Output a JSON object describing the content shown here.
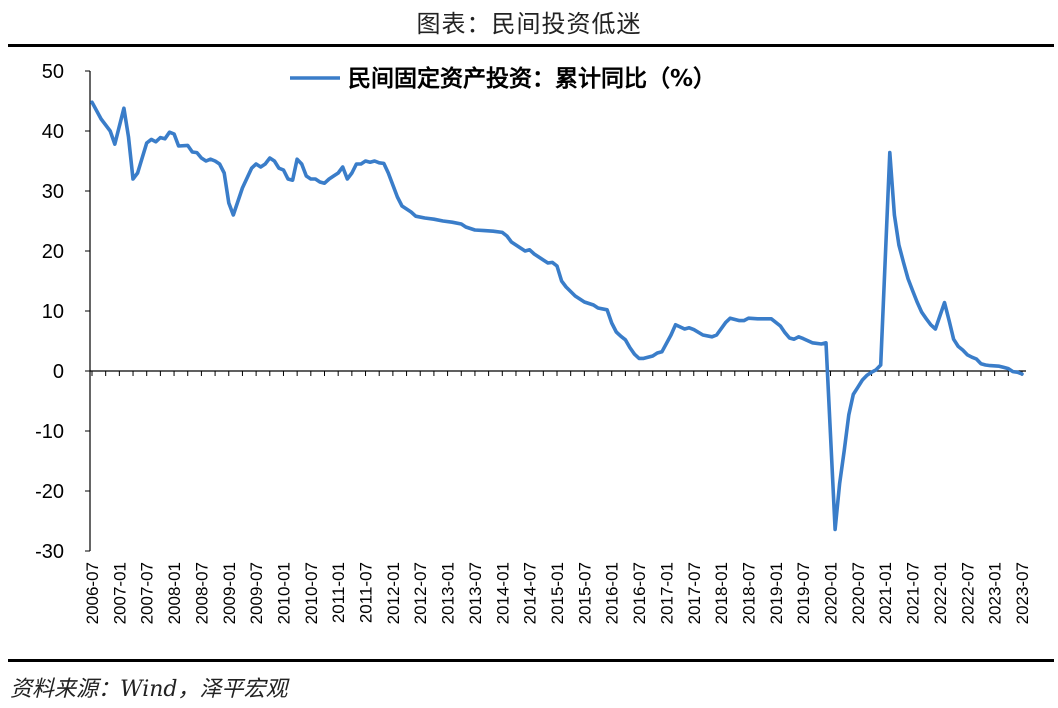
{
  "page": {
    "title": "图表：民间投资低迷",
    "source": "资料来源：Wind，泽平宏观"
  },
  "colors": {
    "series": "#3A7DC9",
    "axis": "#000000"
  },
  "chart_data": {
    "type": "line",
    "legend_position": "top-center",
    "grid": false,
    "ylim": [
      -30,
      50
    ],
    "yticks": [
      50,
      40,
      30,
      20,
      10,
      0,
      -10,
      -20,
      -30
    ],
    "xticks": [
      "2006-07",
      "2007-01",
      "2007-07",
      "2008-01",
      "2008-07",
      "2009-01",
      "2009-07",
      "2010-01",
      "2010-07",
      "2011-01",
      "2011-07",
      "2012-01",
      "2012-07",
      "2013-01",
      "2013-07",
      "2014-01",
      "2014-07",
      "2015-01",
      "2015-07",
      "2016-01",
      "2016-07",
      "2017-01",
      "2017-07",
      "2018-01",
      "2018-07",
      "2019-01",
      "2019-07",
      "2020-01",
      "2020-07",
      "2021-01",
      "2021-07",
      "2022-01",
      "2022-07",
      "2023-01",
      "2023-07"
    ],
    "series": [
      {
        "name": "民间固定资产投资：累计同比（%）",
        "points": [
          [
            "2006-07",
            44.8
          ],
          [
            "2006-09",
            42.0
          ],
          [
            "2006-11",
            40.0
          ],
          [
            "2006-12",
            37.8
          ],
          [
            "2007-02",
            43.8
          ],
          [
            "2007-03",
            39.0
          ],
          [
            "2007-04",
            32.0
          ],
          [
            "2007-05",
            33.0
          ],
          [
            "2007-07",
            38.0
          ],
          [
            "2007-08",
            38.6
          ],
          [
            "2007-09",
            38.2
          ],
          [
            "2007-10",
            38.9
          ],
          [
            "2007-11",
            38.7
          ],
          [
            "2007-12",
            39.8
          ],
          [
            "2008-01",
            39.5
          ],
          [
            "2008-02",
            37.5
          ],
          [
            "2008-04",
            37.6
          ],
          [
            "2008-05",
            36.5
          ],
          [
            "2008-06",
            36.4
          ],
          [
            "2008-07",
            35.5
          ],
          [
            "2008-08",
            35.0
          ],
          [
            "2008-09",
            35.3
          ],
          [
            "2008-10",
            35.0
          ],
          [
            "2008-11",
            34.5
          ],
          [
            "2008-12",
            33.0
          ],
          [
            "2009-01",
            28.0
          ],
          [
            "2009-02",
            26.0
          ],
          [
            "2009-04",
            30.5
          ],
          [
            "2009-06",
            33.8
          ],
          [
            "2009-07",
            34.5
          ],
          [
            "2009-08",
            34.0
          ],
          [
            "2009-09",
            34.5
          ],
          [
            "2009-10",
            35.5
          ],
          [
            "2009-11",
            35.0
          ],
          [
            "2009-12",
            33.8
          ],
          [
            "2010-01",
            33.5
          ],
          [
            "2010-02",
            32.0
          ],
          [
            "2010-03",
            31.8
          ],
          [
            "2010-04",
            35.3
          ],
          [
            "2010-05",
            34.5
          ],
          [
            "2010-06",
            32.5
          ],
          [
            "2010-07",
            32.0
          ],
          [
            "2010-08",
            32.0
          ],
          [
            "2010-09",
            31.5
          ],
          [
            "2010-10",
            31.3
          ],
          [
            "2010-11",
            32.0
          ],
          [
            "2010-12",
            32.5
          ],
          [
            "2011-01",
            33.0
          ],
          [
            "2011-02",
            34.0
          ],
          [
            "2011-03",
            32.0
          ],
          [
            "2011-04",
            33.0
          ],
          [
            "2011-05",
            34.5
          ],
          [
            "2011-06",
            34.5
          ],
          [
            "2011-07",
            35.0
          ],
          [
            "2011-08",
            34.8
          ],
          [
            "2011-09",
            35.0
          ],
          [
            "2011-10",
            34.7
          ],
          [
            "2011-11",
            34.6
          ],
          [
            "2011-12",
            33.0
          ],
          [
            "2012-02",
            29.0
          ],
          [
            "2012-03",
            27.5
          ],
          [
            "2012-05",
            26.5
          ],
          [
            "2012-06",
            25.8
          ],
          [
            "2012-08",
            25.5
          ],
          [
            "2012-10",
            25.3
          ],
          [
            "2012-12",
            25.0
          ],
          [
            "2013-02",
            24.8
          ],
          [
            "2013-04",
            24.5
          ],
          [
            "2013-05",
            24.0
          ],
          [
            "2013-07",
            23.5
          ],
          [
            "2013-09",
            23.4
          ],
          [
            "2013-11",
            23.3
          ],
          [
            "2014-01",
            23.1
          ],
          [
            "2014-02",
            22.5
          ],
          [
            "2014-03",
            21.5
          ],
          [
            "2014-05",
            20.5
          ],
          [
            "2014-06",
            20.0
          ],
          [
            "2014-07",
            20.2
          ],
          [
            "2014-08",
            19.5
          ],
          [
            "2014-10",
            18.5
          ],
          [
            "2014-11",
            18.0
          ],
          [
            "2014-12",
            18.1
          ],
          [
            "2015-01",
            17.5
          ],
          [
            "2015-02",
            15.0
          ],
          [
            "2015-03",
            14.0
          ],
          [
            "2015-05",
            12.5
          ],
          [
            "2015-07",
            11.5
          ],
          [
            "2015-09",
            11.0
          ],
          [
            "2015-10",
            10.5
          ],
          [
            "2015-12",
            10.2
          ],
          [
            "2016-01",
            8.0
          ],
          [
            "2016-02",
            6.5
          ],
          [
            "2016-03",
            5.8
          ],
          [
            "2016-04",
            5.2
          ],
          [
            "2016-05",
            3.9
          ],
          [
            "2016-06",
            2.8
          ],
          [
            "2016-07",
            2.1
          ],
          [
            "2016-08",
            2.1
          ],
          [
            "2016-10",
            2.5
          ],
          [
            "2016-11",
            3.0
          ],
          [
            "2016-12",
            3.2
          ],
          [
            "2017-02",
            6.0
          ],
          [
            "2017-03",
            7.7
          ],
          [
            "2017-05",
            7.0
          ],
          [
            "2017-06",
            7.2
          ],
          [
            "2017-07",
            6.9
          ],
          [
            "2017-09",
            6.0
          ],
          [
            "2017-11",
            5.7
          ],
          [
            "2017-12",
            6.0
          ],
          [
            "2018-02",
            8.1
          ],
          [
            "2018-03",
            8.8
          ],
          [
            "2018-05",
            8.4
          ],
          [
            "2018-06",
            8.4
          ],
          [
            "2018-07",
            8.8
          ],
          [
            "2018-09",
            8.7
          ],
          [
            "2018-11",
            8.7
          ],
          [
            "2018-12",
            8.7
          ],
          [
            "2019-02",
            7.5
          ],
          [
            "2019-03",
            6.4
          ],
          [
            "2019-04",
            5.5
          ],
          [
            "2019-05",
            5.3
          ],
          [
            "2019-06",
            5.7
          ],
          [
            "2019-07",
            5.4
          ],
          [
            "2019-09",
            4.7
          ],
          [
            "2019-11",
            4.5
          ],
          [
            "2019-12",
            4.7
          ],
          [
            "2020-02",
            -26.4
          ],
          [
            "2020-03",
            -18.8
          ],
          [
            "2020-04",
            -13.3
          ],
          [
            "2020-05",
            -7.3
          ],
          [
            "2020-06",
            -3.9
          ],
          [
            "2020-07",
            -2.7
          ],
          [
            "2020-08",
            -1.5
          ],
          [
            "2020-09",
            -0.7
          ],
          [
            "2020-10",
            -0.2
          ],
          [
            "2020-11",
            0.2
          ],
          [
            "2020-12",
            1.0
          ],
          [
            "2021-02",
            36.4
          ],
          [
            "2021-03",
            26.0
          ],
          [
            "2021-04",
            21.0
          ],
          [
            "2021-05",
            18.1
          ],
          [
            "2021-06",
            15.4
          ],
          [
            "2021-07",
            13.4
          ],
          [
            "2021-08",
            11.5
          ],
          [
            "2021-09",
            9.8
          ],
          [
            "2021-10",
            8.7
          ],
          [
            "2021-11",
            7.7
          ],
          [
            "2021-12",
            7.0
          ],
          [
            "2022-02",
            11.4
          ],
          [
            "2022-03",
            8.4
          ],
          [
            "2022-04",
            5.3
          ],
          [
            "2022-05",
            4.1
          ],
          [
            "2022-06",
            3.5
          ],
          [
            "2022-07",
            2.7
          ],
          [
            "2022-08",
            2.3
          ],
          [
            "2022-09",
            2.0
          ],
          [
            "2022-10",
            1.2
          ],
          [
            "2022-11",
            1.0
          ],
          [
            "2022-12",
            0.9
          ],
          [
            "2023-02",
            0.8
          ],
          [
            "2023-03",
            0.6
          ],
          [
            "2023-04",
            0.4
          ],
          [
            "2023-05",
            -0.1
          ],
          [
            "2023-06",
            -0.2
          ],
          [
            "2023-07",
            -0.5
          ]
        ]
      }
    ]
  }
}
